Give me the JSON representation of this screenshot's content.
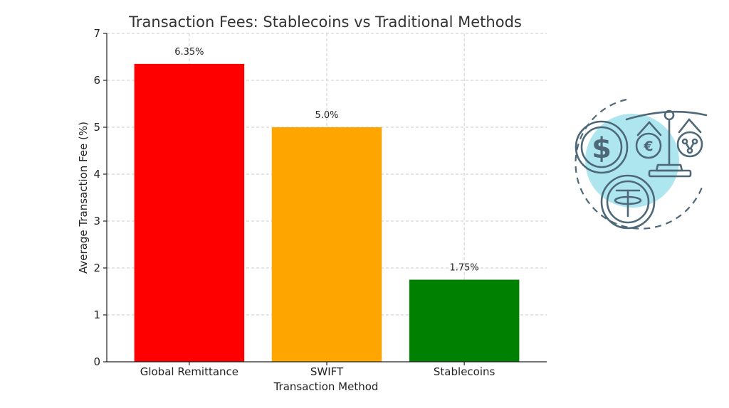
{
  "chart_data": {
    "type": "bar",
    "title": "Transaction Fees: Stablecoins vs Traditional Methods",
    "xlabel": "Transaction Method",
    "ylabel": "Average Transaction Fee (%)",
    "categories": [
      "Global Remittance",
      "SWIFT",
      "Stablecoins"
    ],
    "values": [
      6.35,
      5.0,
      1.75
    ],
    "data_labels": [
      "6.35%",
      "5.0%",
      "1.75%"
    ],
    "colors": [
      "#ff0000",
      "#ffa500",
      "#008000"
    ],
    "ylim": [
      0,
      7
    ],
    "yticks": [
      0,
      1,
      2,
      3,
      4,
      5,
      6,
      7
    ],
    "grid": true,
    "legend": "none"
  },
  "illustration": {
    "icons": [
      "dollar-coin-icon",
      "euro-coin-icon",
      "crypto-coin-icon",
      "tether-coin-icon",
      "balance-scale-icon"
    ],
    "glyphs": {
      "dollar": "$",
      "euro": "€"
    },
    "accent_color": "#aee6ef",
    "stroke_color": "#4e6878"
  }
}
